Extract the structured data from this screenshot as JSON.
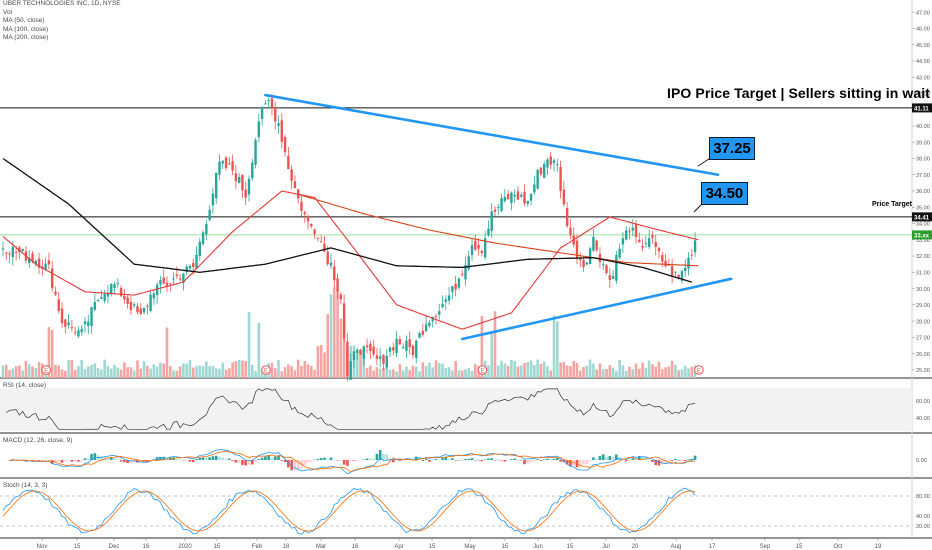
{
  "legend": {
    "title": "UBER TECHNOLOGIES INC, 1D, NYSE",
    "lines": [
      "Vol",
      "MA (50, close)",
      "MA (100, close)",
      "MA (200, close)"
    ]
  },
  "panes": {
    "rsi_label": "RSI (14, close)",
    "macd_label": "MACD (12, 26, close, 9)",
    "stoch_label": "Stoch (14, 3, 3)"
  },
  "annotations": {
    "headline": "IPO Price Target | Sellers sitting in wait",
    "price_target_text": "Price Target",
    "callout_upper": "37.25",
    "callout_lower": "34.50",
    "tag_upper": "41.11",
    "tag_lower": "34.41",
    "tag_current": "33.xx"
  },
  "colors": {
    "up": "#26a69a",
    "down": "#ef5350",
    "ma50": "#e53935",
    "ma100": "#d84315",
    "ma200": "#111111",
    "trend": "#2196f3",
    "macd": "#2196f3",
    "signal": "#ff6d00"
  },
  "chart_data": {
    "type": "candlestick",
    "title": "UBER TECHNOLOGIES INC, 1D, NYSE",
    "x_ticks": [
      "Nov",
      "15",
      "Dec",
      "16",
      "2020",
      "15",
      "Feb",
      "18",
      "Mar",
      "16",
      "Apr",
      "15",
      "May",
      "15",
      "Jun",
      "15",
      "Jul",
      "20",
      "Aug",
      "17",
      "Sep",
      "15",
      "Oct",
      "19"
    ],
    "y_ticks": [
      25,
      26,
      27,
      28,
      29,
      30,
      31,
      32,
      33,
      34,
      35,
      36,
      37,
      38,
      39,
      40,
      41,
      42,
      43,
      44,
      45,
      46,
      47
    ],
    "ylim": [
      24.5,
      47.5
    ],
    "price_anchors": [
      [
        0,
        32.6
      ],
      [
        5,
        32.2
      ],
      [
        10,
        31.8
      ],
      [
        14,
        31.2
      ],
      [
        18,
        28.0
      ],
      [
        24,
        27.2
      ],
      [
        30,
        29.8
      ],
      [
        34,
        30.2
      ],
      [
        38,
        29.2
      ],
      [
        42,
        28.2
      ],
      [
        46,
        30.0
      ],
      [
        50,
        30.3
      ],
      [
        55,
        31.0
      ],
      [
        58,
        31.3
      ],
      [
        62,
        34.3
      ],
      [
        66,
        37.6
      ],
      [
        70,
        37.3
      ],
      [
        74,
        35.8
      ],
      [
        78,
        40.4
      ],
      [
        81,
        41.5
      ],
      [
        84,
        40.2
      ],
      [
        87,
        37.5
      ],
      [
        90,
        35.5
      ],
      [
        93,
        34.0
      ],
      [
        96,
        33.5
      ],
      [
        98,
        32.3
      ],
      [
        100,
        31.5
      ],
      [
        103,
        29.5
      ],
      [
        105,
        24.5
      ],
      [
        108,
        26.5
      ],
      [
        111,
        26.0
      ],
      [
        115,
        25.5
      ],
      [
        120,
        26.8
      ],
      [
        125,
        26.2
      ],
      [
        129,
        28.0
      ],
      [
        133,
        28.8
      ],
      [
        137,
        29.8
      ],
      [
        140,
        31.2
      ],
      [
        143,
        32.8
      ],
      [
        146,
        32.5
      ],
      [
        149,
        34.5
      ],
      [
        153,
        35.5
      ],
      [
        156,
        35.8
      ],
      [
        160,
        35.3
      ],
      [
        163,
        37.0
      ],
      [
        166,
        38.0
      ],
      [
        169,
        37.5
      ],
      [
        171,
        35.0
      ],
      [
        174,
        32.5
      ],
      [
        177,
        31.5
      ],
      [
        180,
        33.0
      ],
      [
        183,
        31.5
      ],
      [
        185,
        30.5
      ],
      [
        188,
        32.5
      ],
      [
        191,
        33.8
      ],
      [
        194,
        32.5
      ],
      [
        197,
        33.2
      ],
      [
        200,
        32.0
      ],
      [
        203,
        31.2
      ],
      [
        206,
        30.6
      ],
      [
        209,
        31.8
      ],
      [
        212,
        33.6
      ]
    ],
    "ma100_anchors": [
      [
        0,
        38.0
      ],
      [
        20,
        35.2
      ],
      [
        40,
        31.5
      ],
      [
        60,
        31.0
      ],
      [
        80,
        31.5
      ],
      [
        100,
        32.5
      ],
      [
        120,
        31.4
      ],
      [
        140,
        31.3
      ],
      [
        160,
        31.8
      ],
      [
        180,
        31.9
      ],
      [
        195,
        31.3
      ],
      [
        210,
        30.4
      ]
    ],
    "ma50_anchors": [
      [
        0,
        33.2
      ],
      [
        10,
        31.5
      ],
      [
        25,
        29.8
      ],
      [
        40,
        29.6
      ],
      [
        55,
        30.4
      ],
      [
        70,
        33.5
      ],
      [
        85,
        36.0
      ],
      [
        95,
        35.6
      ],
      [
        105,
        33.0
      ],
      [
        120,
        29.0
      ],
      [
        140,
        27.5
      ],
      [
        155,
        28.5
      ],
      [
        170,
        32.5
      ],
      [
        185,
        34.4
      ],
      [
        200,
        33.6
      ],
      [
        212,
        33.0
      ]
    ],
    "ma200_anchors": [
      [
        90,
        35.8
      ],
      [
        110,
        34.6
      ],
      [
        130,
        33.6
      ],
      [
        150,
        32.8
      ],
      [
        170,
        32.2
      ],
      [
        190,
        31.6
      ],
      [
        212,
        31.4
      ]
    ],
    "horizontal_levels": [
      41.11,
      34.41
    ],
    "trendlines": [
      {
        "name": "upper",
        "from": [
          80,
          41.9
        ],
        "to": [
          218,
          37.0
        ]
      },
      {
        "name": "lower",
        "from": [
          140,
          26.9
        ],
        "to": [
          222,
          30.6
        ]
      }
    ],
    "indicators": {
      "rsi": {
        "levels": [
          30,
          70
        ],
        "ticks": [
          40,
          60
        ]
      },
      "macd": {
        "ticks": [
          0.0
        ]
      },
      "stoch": {
        "levels": [
          20,
          80
        ],
        "ticks": [
          20,
          40,
          80
        ]
      }
    }
  }
}
